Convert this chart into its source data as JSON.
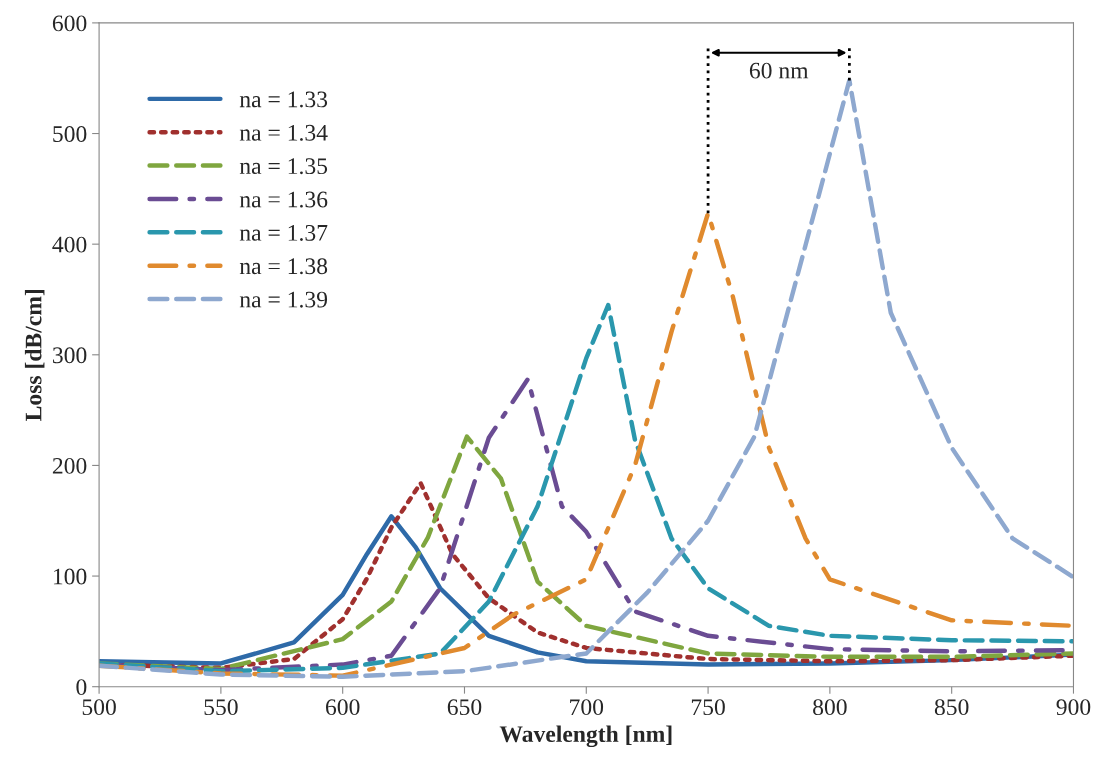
{
  "chart_data": {
    "type": "line",
    "xlabel": "Wavelength [nm]",
    "ylabel": "Loss [dB/cm]",
    "xlim": [
      500,
      900
    ],
    "xticks": [
      500,
      550,
      600,
      650,
      700,
      750,
      800,
      850,
      900
    ],
    "ylim": [
      0,
      600
    ],
    "yticks": [
      0,
      100,
      200,
      300,
      400,
      500,
      600
    ],
    "grid": false,
    "legend": "top left",
    "marker": "none",
    "annotations": [
      "60 nm"
    ],
    "series": [
      {
        "name": "na = 1.33",
        "color": "#2e6aa8",
        "line_style": "solid",
        "x": [
          500,
          550,
          580,
          600,
          610,
          620,
          630,
          640,
          660,
          680,
          700,
          750,
          800,
          850,
          900
        ],
        "values": [
          23,
          21,
          40,
          83,
          120,
          154,
          126,
          89,
          46,
          31,
          23,
          20,
          21,
          24,
          29
        ]
      },
      {
        "name": "na = 1.34",
        "color": "#a0302e",
        "line_style": "dotted",
        "x": [
          500,
          550,
          580,
          600,
          610,
          620,
          632,
          645,
          660,
          680,
          700,
          750,
          800,
          850,
          900
        ],
        "values": [
          20,
          17,
          25,
          61,
          98,
          144,
          184,
          120,
          80,
          49,
          35,
          25,
          23,
          24,
          28
        ]
      },
      {
        "name": "na = 1.35",
        "color": "#7fa63f",
        "line_style": "dashed",
        "x": [
          500,
          550,
          600,
          620,
          635,
          651,
          665,
          680,
          700,
          750,
          800,
          850,
          900
        ],
        "values": [
          21,
          16,
          43,
          77,
          135,
          226,
          188,
          95,
          55,
          30,
          27,
          27,
          30
        ]
      },
      {
        "name": "na = 1.36",
        "color": "#6a4c93",
        "line_style": "dashdot",
        "x": [
          500,
          550,
          600,
          620,
          640,
          660,
          676,
          690,
          700,
          720,
          750,
          800,
          850,
          900
        ],
        "values": [
          20,
          15,
          20,
          28,
          89,
          225,
          278,
          163,
          140,
          68,
          46,
          34,
          32,
          33
        ]
      },
      {
        "name": "na = 1.37",
        "color": "#2a97ad",
        "line_style": "dashed",
        "x": [
          500,
          550,
          600,
          640,
          660,
          680,
          700,
          709,
          720,
          735,
          750,
          775,
          800,
          850,
          900
        ],
        "values": [
          21,
          14,
          17,
          30,
          77,
          163,
          297,
          345,
          223,
          134,
          89,
          55,
          46,
          42,
          41
        ]
      },
      {
        "name": "na = 1.38",
        "color": "#e08a2e",
        "line_style": "dashdot",
        "x": [
          500,
          550,
          600,
          650,
          670,
          700,
          720,
          735,
          750,
          760,
          775,
          790,
          800,
          850,
          900
        ],
        "values": [
          19,
          12,
          10,
          35,
          65,
          97,
          200,
          321,
          428,
          354,
          216,
          134,
          97,
          60,
          55
        ]
      },
      {
        "name": "na = 1.39",
        "color": "#8ea8cf",
        "line_style": "dashed",
        "x": [
          500,
          550,
          600,
          650,
          700,
          725,
          750,
          769,
          790,
          808,
          825,
          850,
          875,
          900
        ],
        "values": [
          19,
          11,
          9,
          14,
          30,
          85,
          150,
          226,
          399,
          548,
          338,
          216,
          134,
          99
        ]
      }
    ]
  }
}
